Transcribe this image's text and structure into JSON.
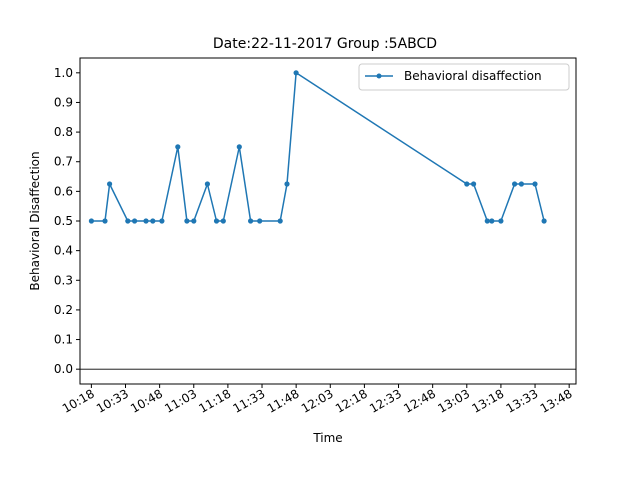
{
  "chart_data": {
    "type": "line",
    "title": "Date:22-11-2017 Group :5ABCD",
    "xlabel": "Time",
    "ylabel": "Behavioral Disaffection",
    "ylim": [
      -0.05,
      1.05
    ],
    "xlim": [
      "10:13",
      "13:51"
    ],
    "grid": false,
    "legend_position": "top-right",
    "y_ticks": [
      "0.0",
      "0.1",
      "0.2",
      "0.3",
      "0.4",
      "0.5",
      "0.6",
      "0.7",
      "0.8",
      "0.9",
      "1.0"
    ],
    "x_ticks": [
      "10:18",
      "10:33",
      "10:48",
      "11:03",
      "11:18",
      "11:33",
      "11:48",
      "12:03",
      "12:18",
      "12:33",
      "12:48",
      "13:03",
      "13:18",
      "13:33",
      "13:48"
    ],
    "reference_line_y": 0.0,
    "series": [
      {
        "name": "Behavioral disaffection",
        "color": "#1f77b4",
        "marker": "point",
        "x": [
          "10:18",
          "10:24",
          "10:26",
          "10:34",
          "10:37",
          "10:42",
          "10:45",
          "10:49",
          "10:56",
          "11:00",
          "11:03",
          "11:09",
          "11:13",
          "11:16",
          "11:23",
          "11:28",
          "11:32",
          "11:41",
          "11:44",
          "11:48",
          "13:03",
          "13:06",
          "13:12",
          "13:14",
          "13:18",
          "13:24",
          "13:27",
          "13:33",
          "13:37"
        ],
        "y": [
          0.5,
          0.5,
          0.625,
          0.5,
          0.5,
          0.5,
          0.5,
          0.5,
          0.75,
          0.5,
          0.5,
          0.625,
          0.5,
          0.5,
          0.75,
          0.5,
          0.5,
          0.5,
          0.625,
          1.0,
          0.625,
          0.625,
          0.5,
          0.5,
          0.5,
          0.625,
          0.625,
          0.625,
          0.5
        ]
      }
    ]
  }
}
